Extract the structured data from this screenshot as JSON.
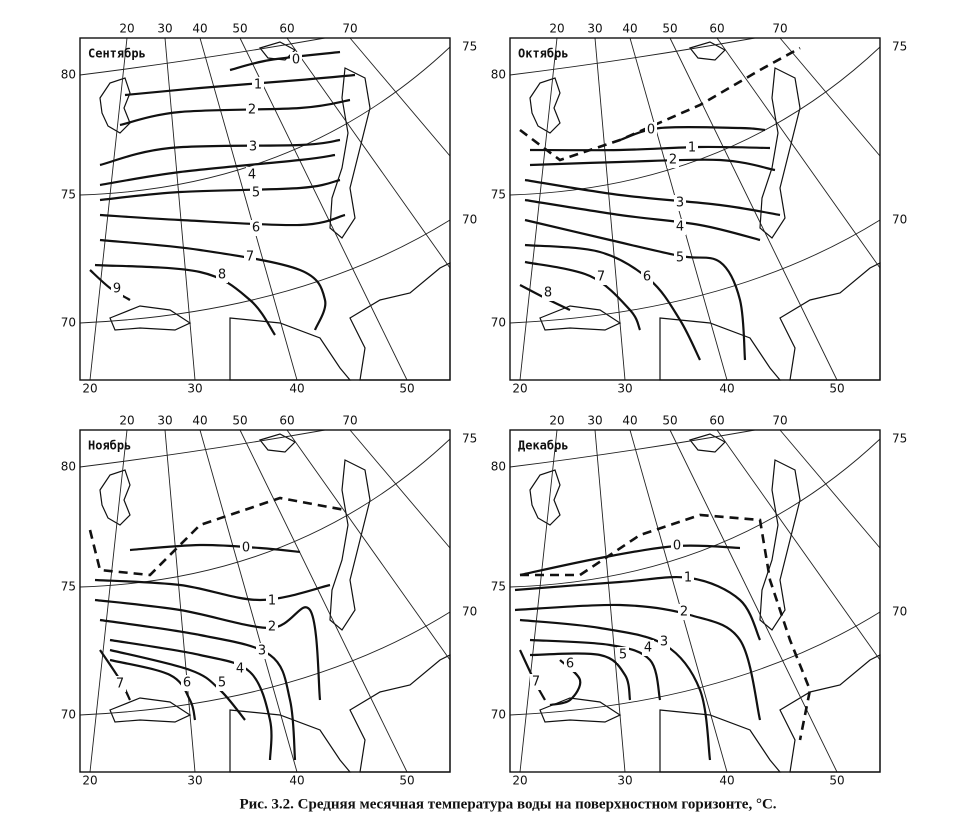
{
  "panels": [
    {
      "title": "Сентябрь",
      "meridians_top": [
        20,
        30,
        40,
        50,
        60,
        70
      ],
      "meridians_bottom": [
        20,
        30,
        40,
        50
      ],
      "parallels_left": [
        80,
        75,
        70
      ],
      "parallels_right": [
        75,
        70
      ],
      "isotherms": [
        0,
        1,
        2,
        3,
        4,
        5,
        6,
        7,
        8,
        9
      ]
    },
    {
      "title": "Октябрь",
      "meridians_top": [
        20,
        30,
        40,
        50,
        60,
        70
      ],
      "meridians_bottom": [
        20,
        30,
        40,
        50
      ],
      "parallels_left": [
        80,
        75,
        70
      ],
      "parallels_right": [
        75,
        70
      ],
      "isotherms": [
        0,
        1,
        2,
        3,
        4,
        5,
        6,
        7,
        8
      ]
    },
    {
      "title": "Ноябрь",
      "meridians_top": [
        20,
        30,
        40,
        50,
        60,
        70
      ],
      "meridians_bottom": [
        20,
        30,
        40,
        50
      ],
      "parallels_left": [
        80,
        75,
        70
      ],
      "parallels_right": [
        75,
        70
      ],
      "isotherms": [
        0,
        1,
        2,
        3,
        4,
        5,
        6,
        7
      ]
    },
    {
      "title": "Декабрь",
      "meridians_top": [
        20,
        30,
        40,
        50,
        60,
        70
      ],
      "meridians_bottom": [
        20,
        30,
        40,
        50
      ],
      "parallels_left": [
        80,
        75,
        70
      ],
      "parallels_right": [
        75,
        70
      ],
      "isotherms": [
        0,
        1,
        2,
        3,
        4,
        5,
        6,
        7
      ]
    }
  ],
  "caption": "Рис. 3.2. Средняя месячная температура воды на поверхностном горизонте, °C."
}
